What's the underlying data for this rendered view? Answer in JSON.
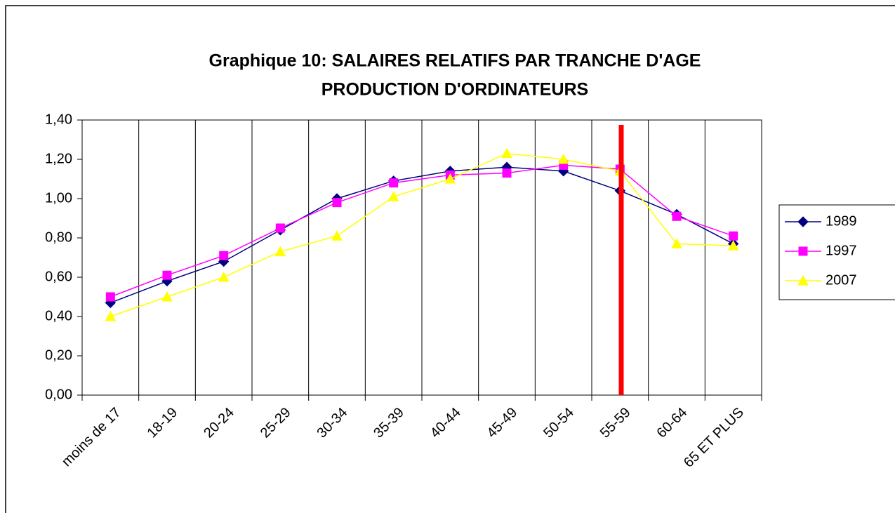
{
  "chart_data": {
    "type": "line",
    "title": "Graphique 10: SALAIRES RELATIFS PAR TRANCHE D'AGE",
    "subtitle": "PRODUCTION D'ORDINATEURS",
    "categories": [
      "moins de 17",
      "18-19",
      "20-24",
      "25-29",
      "30-34",
      "35-39",
      "40-44",
      "45-49",
      "50-54",
      "55-59",
      "60-64",
      "65 ET PLUS"
    ],
    "series": [
      {
        "name": "1989",
        "color": "#000080",
        "marker": "diamond",
        "values": [
          0.47,
          0.58,
          0.68,
          0.84,
          1.0,
          1.09,
          1.14,
          1.16,
          1.14,
          1.04,
          0.92,
          0.77
        ]
      },
      {
        "name": "1997",
        "color": "#ff00ff",
        "marker": "square",
        "values": [
          0.5,
          0.61,
          0.71,
          0.85,
          0.98,
          1.08,
          1.12,
          1.13,
          1.17,
          1.15,
          0.91,
          0.81
        ]
      },
      {
        "name": "2007",
        "color": "#ffff00",
        "marker": "triangle",
        "values": [
          0.4,
          0.5,
          0.6,
          0.73,
          0.81,
          1.01,
          1.1,
          1.23,
          1.2,
          1.14,
          0.77,
          0.76
        ]
      }
    ],
    "ylim": [
      0,
      1.4
    ],
    "yticks": [
      {
        "value": 0,
        "label": "0,00"
      },
      {
        "value": 0.2,
        "label": "0,20"
      },
      {
        "value": 0.4,
        "label": "0,40"
      },
      {
        "value": 0.6,
        "label": "0,60"
      },
      {
        "value": 0.8,
        "label": "0,80"
      },
      {
        "value": 1.0,
        "label": "1,00"
      },
      {
        "value": 1.2,
        "label": "1,20"
      },
      {
        "value": 1.4,
        "label": "1,40"
      }
    ],
    "legend": "right"
  }
}
